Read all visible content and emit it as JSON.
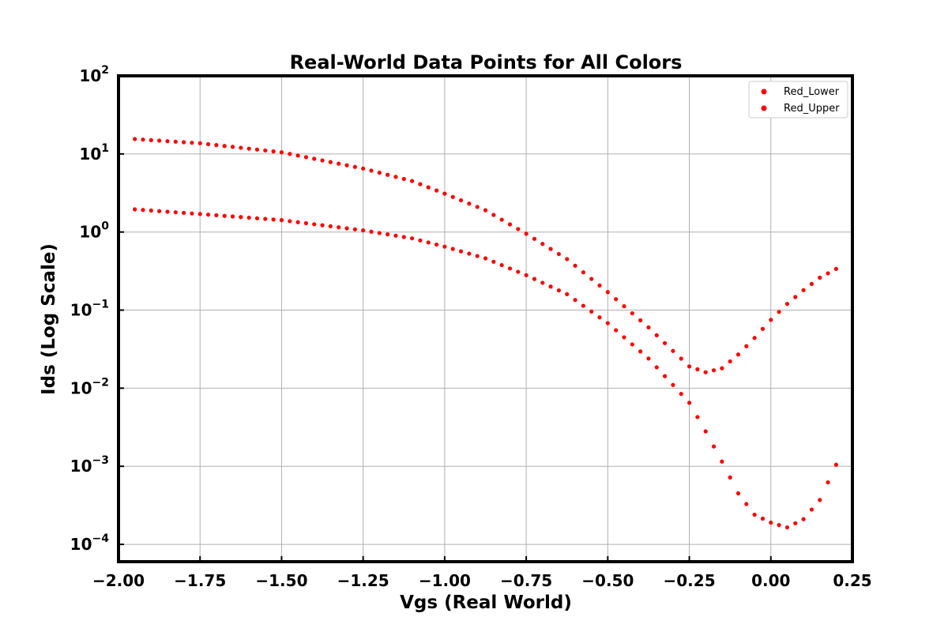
{
  "chart_data": {
    "type": "scatter",
    "title": "Real-World Data Points for All Colors",
    "xlabel": "Vgs (Real World)",
    "ylabel": "Ids (Log Scale)",
    "xlim": [
      -2.0,
      0.25
    ],
    "ylim": [
      6e-05,
      100
    ],
    "yscale": "log",
    "grid": true,
    "legend_position": "top-right",
    "x_ticks": [
      {
        "value": -2.0,
        "label": "−2.00"
      },
      {
        "value": -1.75,
        "label": "−1.75"
      },
      {
        "value": -1.5,
        "label": "−1.50"
      },
      {
        "value": -1.25,
        "label": "−1.25"
      },
      {
        "value": -1.0,
        "label": "−1.00"
      },
      {
        "value": -0.75,
        "label": "−0.75"
      },
      {
        "value": -0.5,
        "label": "−0.50"
      },
      {
        "value": -0.25,
        "label": "−0.25"
      },
      {
        "value": 0.0,
        "label": "0.00"
      },
      {
        "value": 0.25,
        "label": "0.25"
      }
    ],
    "y_ticks": [
      {
        "value": 100,
        "base": "10",
        "exp": "2"
      },
      {
        "value": 10,
        "base": "10",
        "exp": "1"
      },
      {
        "value": 1,
        "base": "10",
        "exp": "0"
      },
      {
        "value": 0.1,
        "base": "10",
        "exp": "−1"
      },
      {
        "value": 0.01,
        "base": "10",
        "exp": "−2"
      },
      {
        "value": 0.001,
        "base": "10",
        "exp": "−3"
      },
      {
        "value": 0.0001,
        "base": "10",
        "exp": "−4"
      }
    ],
    "series": [
      {
        "name": "Red_Lower",
        "color": "#ff0000",
        "anchors": [
          [
            -1.95,
            1.95
          ],
          [
            -1.75,
            1.7
          ],
          [
            -1.5,
            1.42
          ],
          [
            -1.25,
            1.05
          ],
          [
            -1.1,
            0.83
          ],
          [
            -1.0,
            0.65
          ],
          [
            -0.875,
            0.46
          ],
          [
            -0.75,
            0.28
          ],
          [
            -0.625,
            0.16
          ],
          [
            -0.5,
            0.068
          ],
          [
            -0.375,
            0.024
          ],
          [
            -0.3,
            0.011
          ],
          [
            -0.25,
            0.0065
          ],
          [
            -0.2,
            0.0028
          ],
          [
            -0.15,
            0.00115
          ],
          [
            -0.1,
            0.00045
          ],
          [
            -0.05,
            0.00024
          ],
          [
            0.0,
            0.00019
          ],
          [
            0.05,
            0.000165
          ],
          [
            0.1,
            0.00021
          ],
          [
            0.15,
            0.00037
          ],
          [
            0.19,
            0.00085
          ]
        ]
      },
      {
        "name": "Red_Upper",
        "color": "#ff0000",
        "anchors": [
          [
            -1.95,
            15.5
          ],
          [
            -1.75,
            13.7
          ],
          [
            -1.5,
            10.5
          ],
          [
            -1.25,
            6.5
          ],
          [
            -1.1,
            4.5
          ],
          [
            -1.0,
            3.1
          ],
          [
            -0.875,
            1.9
          ],
          [
            -0.75,
            0.95
          ],
          [
            -0.625,
            0.45
          ],
          [
            -0.5,
            0.17
          ],
          [
            -0.375,
            0.06
          ],
          [
            -0.3,
            0.03
          ],
          [
            -0.25,
            0.019
          ],
          [
            -0.2,
            0.016
          ],
          [
            -0.15,
            0.018
          ],
          [
            -0.1,
            0.027
          ],
          [
            -0.05,
            0.044
          ],
          [
            0.0,
            0.075
          ],
          [
            0.05,
            0.12
          ],
          [
            0.1,
            0.18
          ],
          [
            0.15,
            0.26
          ],
          [
            0.19,
            0.32
          ]
        ]
      }
    ]
  }
}
